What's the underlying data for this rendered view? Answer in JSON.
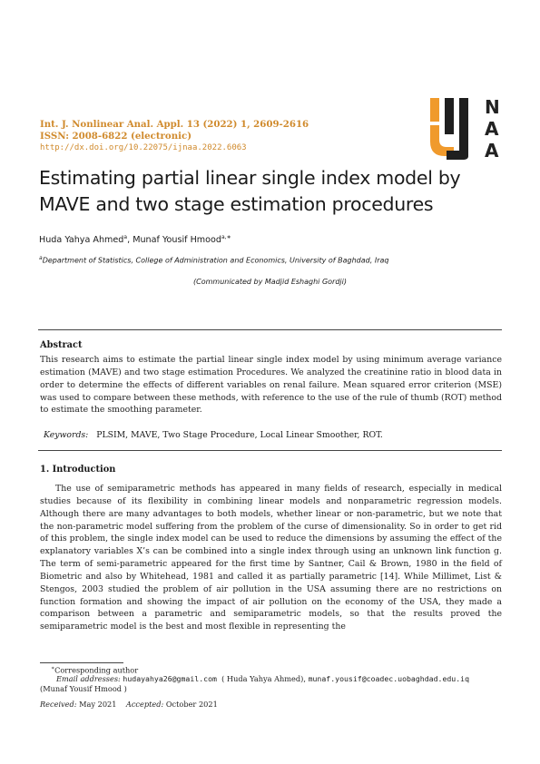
{
  "journal": {
    "citation": "Int. J. Nonlinear Anal. Appl. 13 (2022) 1, 2609-2616",
    "issn": "ISSN: 2008-6822 (electronic)",
    "doi": "http://dx.doi.org/10.22075/ijnaa.2022.6063"
  },
  "logo": {
    "letters": [
      "N",
      "A",
      "A"
    ],
    "brand_color": "#f09a2c"
  },
  "title": "Estimating partial linear single index model by MAVE and two stage estimation procedures",
  "authors": {
    "a1_name": "Huda Yahya Ahmed",
    "a1_sup": "a",
    "separator": ", ",
    "a2_name": "Munaf Yousif Hmood",
    "a2_sup": "a,∗"
  },
  "affiliation": {
    "sup": "a",
    "text": "Department of Statistics, College of Administration and Economics, University of Baghdad, Iraq"
  },
  "communicated": "(Communicated by Madjid Eshaghi Gordji)",
  "abstract": {
    "heading": "Abstract",
    "text": "This research aims to estimate the partial linear single index model by using minimum average variance estimation (MAVE) and two stage estimation Procedures. We analyzed the creatinine ratio in blood data in order to determine the effects of different variables on renal failure. Mean squared error criterion (MSE) was used to compare between these methods, with reference to the use of the rule of thumb (ROT) method to estimate the smoothing parameter."
  },
  "keywords": {
    "label": "Keywords:",
    "text": "PLSIM, MAVE, Two Stage Procedure, Local Linear Smoother, ROT."
  },
  "introduction": {
    "heading": "1.  Introduction",
    "text": "The use of semiparametric methods has appeared in many fields of research, especially in medical studies because of its flexibility in combining linear models and nonparametric regression models. Although there are many advantages to both models, whether linear or non-parametric, but we note that the non-parametric model suffering from the problem of the curse of dimensionality. So in order to get rid of this problem, the single index model can be used to reduce the dimensions by assuming the effect of the explanatory variables X’s can be combined into a single index through using an unknown link function g. The term of semi-parametric appeared for the first time by Santner, Cail & Brown, 1980 in the field of Biometric and also by Whitehead, 1981 and called it as partially parametric [14]. While Millimet, List & Stengos, 2003 studied the problem of air pollution in the USA assuming there are no restrictions on function formation and showing the impact of air pollution on the economy of the USA, they made a comparison between a parametric and semiparametric models, so that the results proved the semiparametric model is the best and most flexible in representing the"
  },
  "footnote": {
    "marker": "∗",
    "corresponding": "Corresponding author",
    "email_label": "Email addresses:",
    "email1": "hudayahya26@gmail.com",
    "name1": "( Huda Yahya Ahmed),",
    "email2": "munaf.yousif@coadec.uobaghdad.edu.iq",
    "name2": "(Munaf Yousif Hmood )"
  },
  "dates": {
    "received_label": "Received:",
    "received": "May 2021",
    "accepted_label": "Accepted:",
    "accepted": "October 2021"
  }
}
